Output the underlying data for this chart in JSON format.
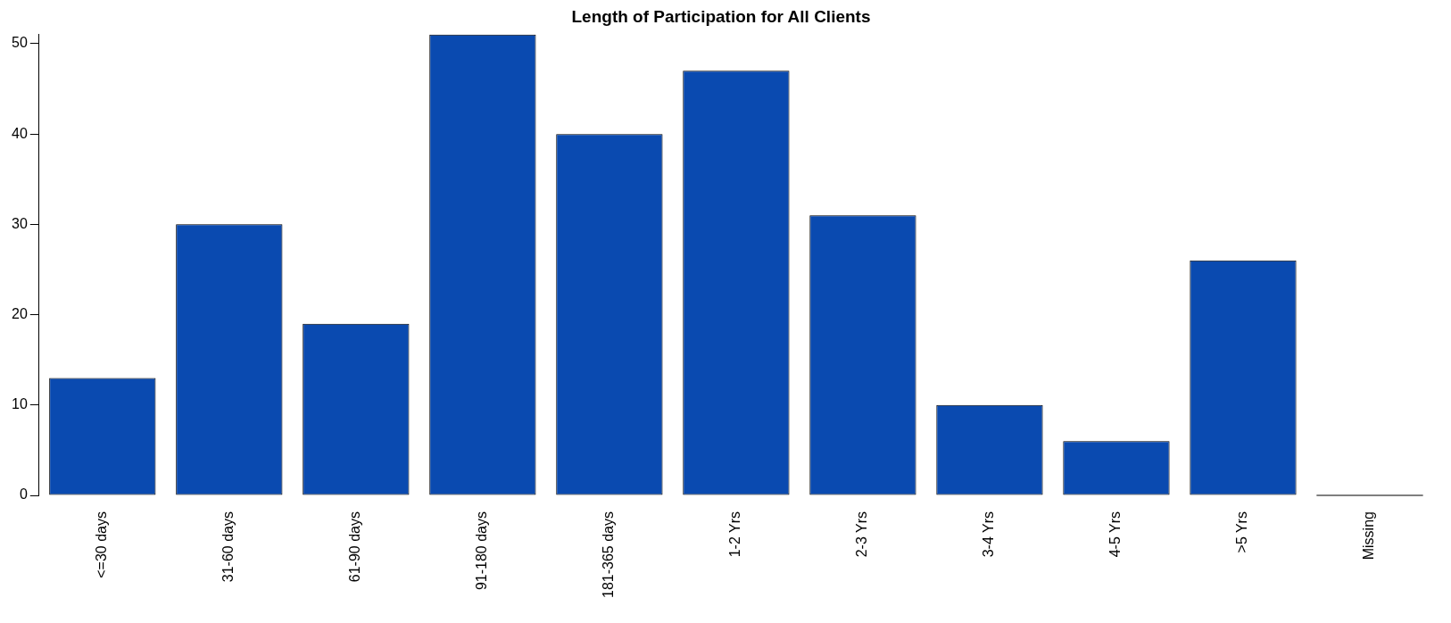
{
  "chart_data": {
    "type": "bar",
    "title": "Length of Participation for All Clients",
    "categories": [
      "<=30 days",
      "31-60 days",
      "61-90 days",
      "91-180 days",
      "181-365 days",
      "1-2 Yrs",
      "2-3 Yrs",
      "3-4 Yrs",
      "4-5 Yrs",
      ">5 Yrs",
      "Missing"
    ],
    "values": [
      13,
      30,
      19,
      51,
      40,
      47,
      31,
      10,
      6,
      26,
      0
    ],
    "color": "#0a4ab0",
    "ylim": [
      0,
      51
    ],
    "yticks": [
      0,
      10,
      20,
      30,
      40,
      50
    ],
    "grid": false,
    "legend": false
  }
}
